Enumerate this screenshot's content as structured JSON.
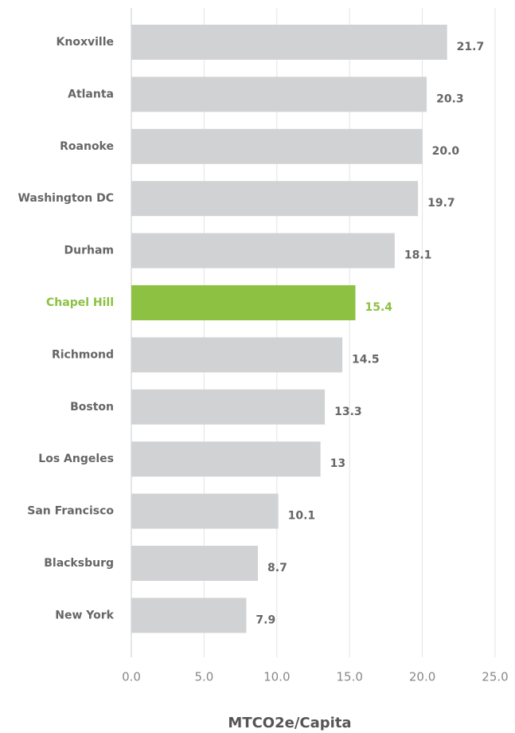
{
  "chart_data": {
    "type": "barh",
    "categories": [
      "Knoxville",
      "Atlanta",
      "Roanoke",
      "Washington DC",
      "Durham",
      "Chapel Hill",
      "Richmond",
      "Boston",
      "Los Angeles",
      "San Francisco",
      "Blacksburg",
      "New York"
    ],
    "values": [
      21.7,
      20.3,
      20.0,
      19.7,
      18.1,
      15.4,
      14.5,
      13.3,
      13,
      10.1,
      8.7,
      7.9
    ],
    "value_labels": [
      "21.7",
      "20.3",
      "20.0",
      "19.7",
      "18.1",
      "15.4",
      "14.5",
      "13.3",
      "13",
      "10.1",
      "8.7",
      "7.9"
    ],
    "color": "#d1d2d4",
    "highlight_color": "#8cc142",
    "colors": [
      "#d1d2d4",
      "#d1d2d4",
      "#d1d2d4",
      "#d1d2d4",
      "#d1d2d4",
      "#8cc142",
      "#d1d2d4",
      "#d1d2d4",
      "#d1d2d4",
      "#d1d2d4",
      "#d1d2d4",
      "#d1d2d4"
    ],
    "x_label": "MTCO2e/Capita",
    "xlim": [
      0,
      25
    ],
    "xticks": [
      {
        "value": 0,
        "label": "0.0"
      },
      {
        "value": 5,
        "label": "5.0"
      },
      {
        "value": 10,
        "label": "10.0"
      },
      {
        "value": 15,
        "label": "15.0"
      },
      {
        "value": 20,
        "label": "20.0"
      },
      {
        "value": 25,
        "label": "25.0"
      }
    ],
    "grid": true
  }
}
